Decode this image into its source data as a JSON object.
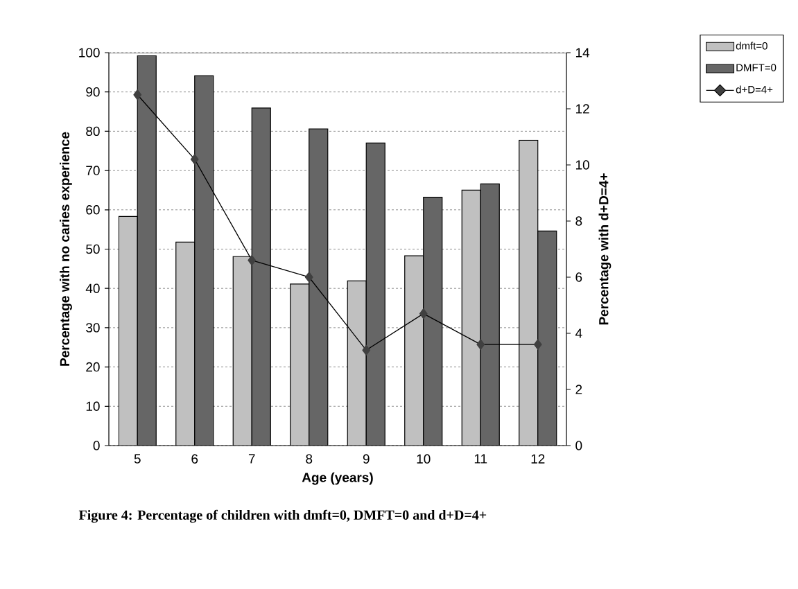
{
  "chart_data": {
    "type": "bar",
    "title": "Figure 4: Percentage of children with dmft=0, DMFT=0 and d+D=4+",
    "xlabel": "Age (years)",
    "ylabel": "Percentage with no caries experience",
    "y2label": "Percentage with d+D=4+",
    "categories": [
      "5",
      "6",
      "7",
      "8",
      "9",
      "10",
      "11",
      "12"
    ],
    "series": [
      {
        "name": "dmft=0",
        "color": "#c0c0c0",
        "values": [
          58.3,
          51.8,
          48.1,
          41.1,
          41.9,
          48.3,
          65.0,
          77.7
        ]
      },
      {
        "name": "DMFT=0",
        "color": "#666666",
        "values": [
          99.2,
          94.1,
          85.9,
          80.6,
          77.0,
          63.2,
          66.6,
          54.6
        ]
      },
      {
        "name": "d+D=4+",
        "type": "line",
        "axis": "y2",
        "color": "#404040",
        "marker": "diamond",
        "values": [
          12.5,
          10.2,
          6.6,
          6.0,
          3.4,
          4.7,
          3.6,
          3.6
        ]
      }
    ],
    "ylim": [
      0,
      100
    ],
    "yticks": [
      0,
      10,
      20,
      30,
      40,
      50,
      60,
      70,
      80,
      90,
      100
    ],
    "y2lim": [
      0,
      14
    ],
    "y2ticks": [
      0,
      2,
      4,
      6,
      8,
      10,
      12,
      14
    ],
    "grid": "y",
    "legend": "top right"
  }
}
